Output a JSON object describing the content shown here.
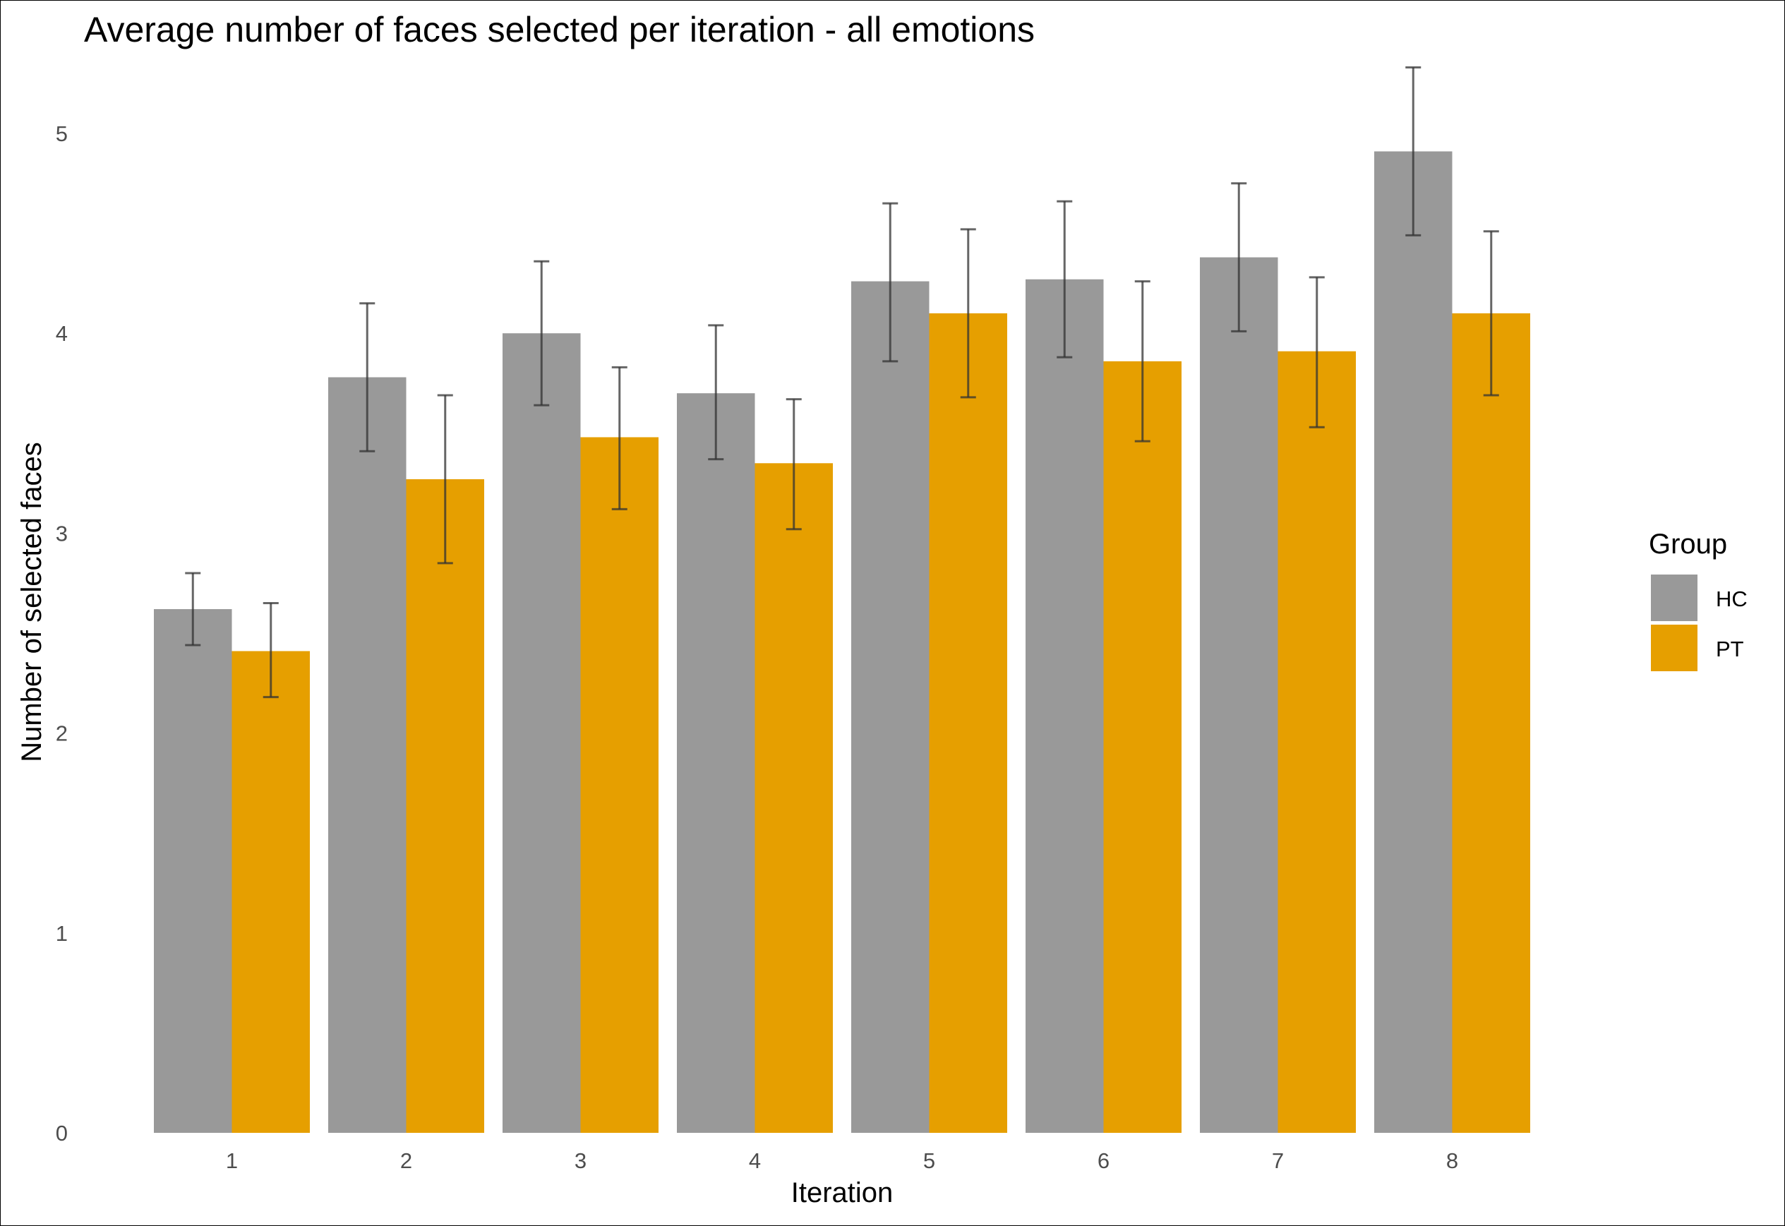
{
  "chart_data": {
    "type": "bar",
    "title": "Average number of faces selected per iteration - all emotions",
    "xlabel": "Iteration",
    "ylabel": "Number of selected faces",
    "categories": [
      "1",
      "2",
      "3",
      "4",
      "5",
      "6",
      "7",
      "8"
    ],
    "y_ticks": [
      "0",
      "1",
      "2",
      "3",
      "4",
      "5"
    ],
    "ylim": [
      0,
      5.35
    ],
    "grid": false,
    "legend": {
      "title": "Group",
      "placement": "right"
    },
    "series": [
      {
        "name": "HC",
        "color": "#999999",
        "values": [
          2.62,
          3.78,
          4.0,
          3.7,
          4.26,
          4.27,
          4.38,
          4.91
        ],
        "error_low": [
          2.44,
          3.41,
          3.64,
          3.37,
          3.86,
          3.88,
          4.01,
          4.49
        ],
        "error_high": [
          2.8,
          4.15,
          4.36,
          4.04,
          4.65,
          4.66,
          4.75,
          5.33
        ]
      },
      {
        "name": "PT",
        "color": "#E69F00",
        "values": [
          2.41,
          3.27,
          3.48,
          3.35,
          4.1,
          3.86,
          3.91,
          4.1
        ],
        "error_low": [
          2.18,
          2.85,
          3.12,
          3.02,
          3.68,
          3.46,
          3.53,
          3.69
        ],
        "error_high": [
          2.65,
          3.69,
          3.83,
          3.67,
          4.52,
          4.26,
          4.28,
          4.51
        ]
      }
    ]
  }
}
